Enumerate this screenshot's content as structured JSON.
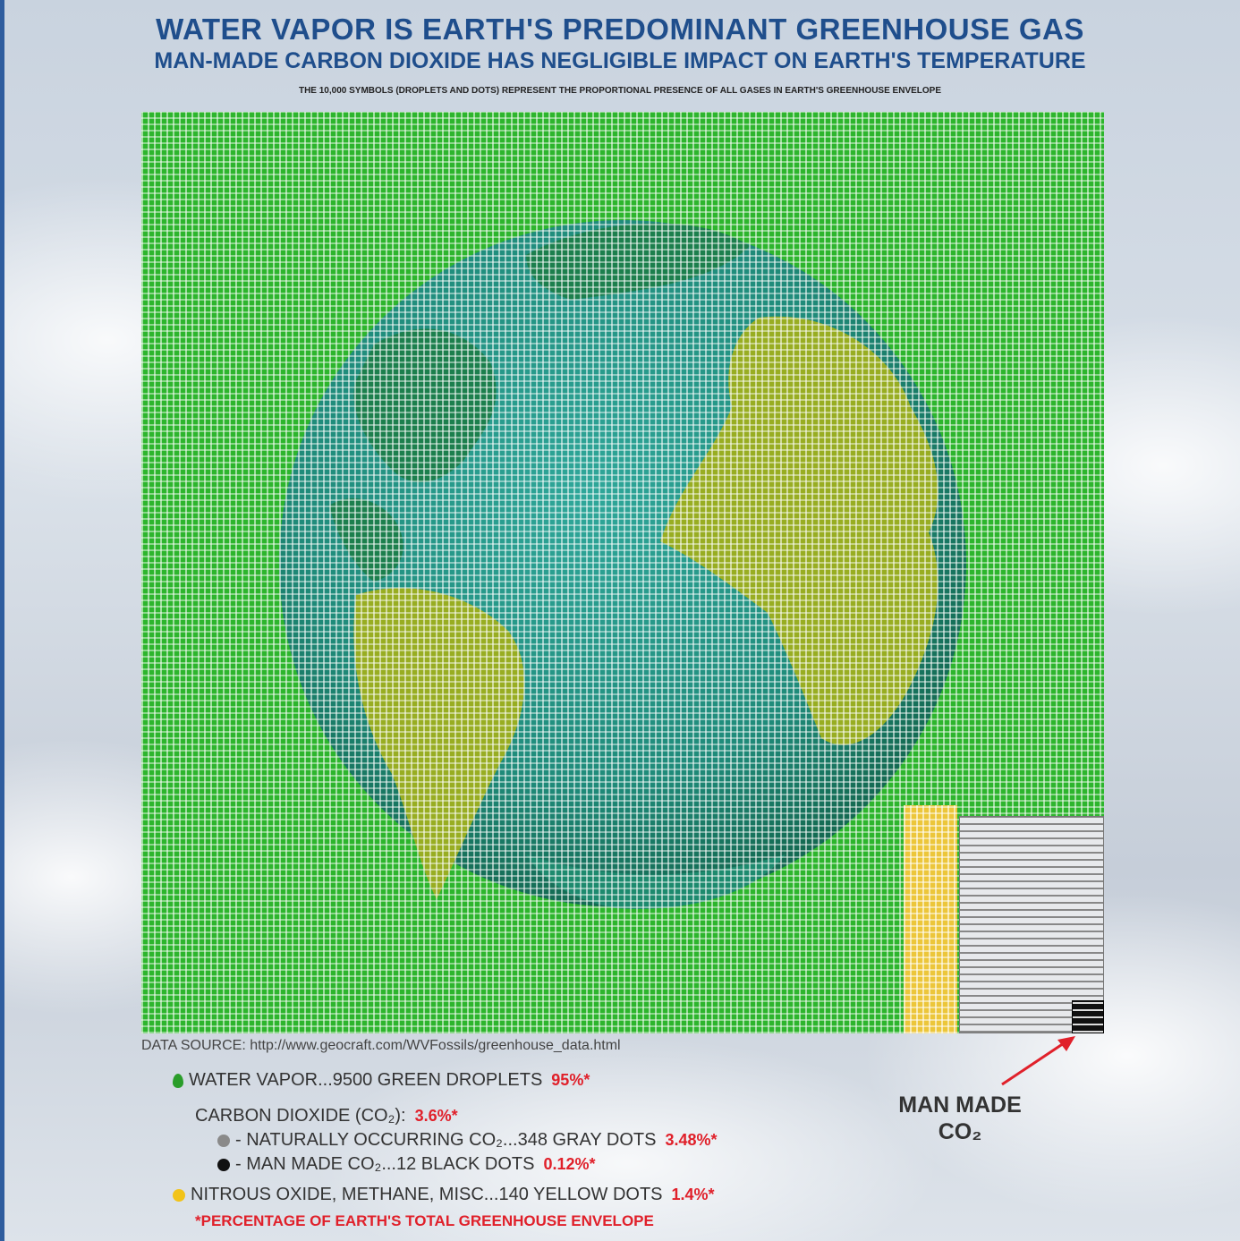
{
  "header": {
    "title": "WATER VAPOR IS EARTH'S PREDOMINANT GREENHOUSE GAS",
    "subtitle": "MAN-MADE CARBON DIOXIDE HAS NEGLIGIBLE IMPACT ON EARTH'S TEMPERATURE",
    "caption": "THE 10,000 SYMBOLS (DROPLETS AND DOTS) REPRESENT THE PROPORTIONAL PRESENCE OF ALL GASES IN EARTH'S GREENHOUSE ENVELOPE"
  },
  "source": "DATA SOURCE: http://www.geocraft.com/WVFossils/greenhouse_data.html",
  "legend": {
    "water": {
      "label": "WATER VAPOR...9500 GREEN DROPLETS",
      "pct": "95%*",
      "color": "#2a9d2a"
    },
    "co2": {
      "label": "CARBON DIOXIDE (CO₂):",
      "pct": "3.6%*"
    },
    "co2_natural": {
      "label": "- NATURALLY OCCURRING CO₂...348 GRAY DOTS",
      "pct": "3.48%*",
      "color": "#8a8a8a"
    },
    "co2_manmade": {
      "label": "- MAN MADE CO₂...12 BLACK DOTS",
      "pct": "0.12%*",
      "color": "#111111"
    },
    "other": {
      "label": "NITROUS OXIDE, METHANE, MISC...140 YELLOW DOTS",
      "pct": "1.4%*",
      "color": "#f2c318"
    },
    "note": "*PERCENTAGE OF EARTH'S TOTAL GREENHOUSE ENVELOPE"
  },
  "annotation": {
    "line1": "MAN MADE",
    "line2": "CO₂"
  },
  "chart_data": {
    "type": "waffle",
    "total_symbols": 10000,
    "categories": [
      "Water vapor",
      "Naturally occurring CO₂",
      "Man made CO₂",
      "Nitrous oxide, methane, misc."
    ],
    "values": [
      9500,
      348,
      12,
      140
    ],
    "percent": [
      95,
      3.48,
      0.12,
      1.4
    ],
    "colors": [
      "#2db52d",
      "#8a8a8a",
      "#111111",
      "#ecc63a"
    ]
  }
}
